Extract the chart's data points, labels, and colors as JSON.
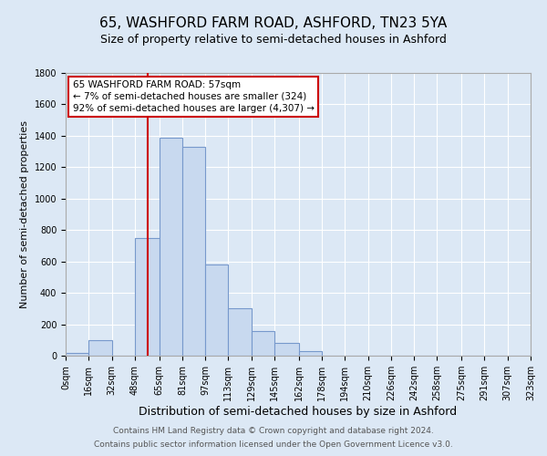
{
  "title1": "65, WASHFORD FARM ROAD, ASHFORD, TN23 5YA",
  "title2": "Size of property relative to semi-detached houses in Ashford",
  "xlabel": "Distribution of semi-detached houses by size in Ashford",
  "ylabel": "Number of semi-detached properties",
  "bin_edges": [
    0,
    16,
    32,
    48,
    65,
    81,
    97,
    113,
    129,
    145,
    162,
    178,
    194,
    210,
    226,
    242,
    258,
    275,
    291,
    307,
    323
  ],
  "bar_heights": [
    15,
    100,
    0,
    750,
    1390,
    1330,
    580,
    300,
    155,
    80,
    30,
    0,
    0,
    0,
    0,
    0,
    0,
    0,
    0,
    0
  ],
  "bar_color": "#c8d9ef",
  "bar_edge_color": "#7799cc",
  "property_line_x": 57,
  "ylim": [
    0,
    1800
  ],
  "yticks": [
    0,
    200,
    400,
    600,
    800,
    1000,
    1200,
    1400,
    1600,
    1800
  ],
  "xtick_labels": [
    "0sqm",
    "16sqm",
    "32sqm",
    "48sqm",
    "65sqm",
    "81sqm",
    "97sqm",
    "113sqm",
    "129sqm",
    "145sqm",
    "162sqm",
    "178sqm",
    "194sqm",
    "210sqm",
    "226sqm",
    "242sqm",
    "258sqm",
    "275sqm",
    "291sqm",
    "307sqm",
    "323sqm"
  ],
  "annotation_line1": "65 WASHFORD FARM ROAD: 57sqm",
  "annotation_line2": "← 7% of semi-detached houses are smaller (324)",
  "annotation_line3": "92% of semi-detached houses are larger (4,307) →",
  "red_line_color": "#cc0000",
  "box_edge_color": "#cc0000",
  "footer1": "Contains HM Land Registry data © Crown copyright and database right 2024.",
  "footer2": "Contains public sector information licensed under the Open Government Licence v3.0.",
  "background_color": "#dce8f5",
  "plot_bg_color": "#dce8f5",
  "grid_color": "#ffffff",
  "title1_fontsize": 11,
  "title2_fontsize": 9,
  "xlabel_fontsize": 9,
  "ylabel_fontsize": 8,
  "tick_fontsize": 7,
  "annotation_fontsize": 7.5,
  "footer_fontsize": 6.5
}
